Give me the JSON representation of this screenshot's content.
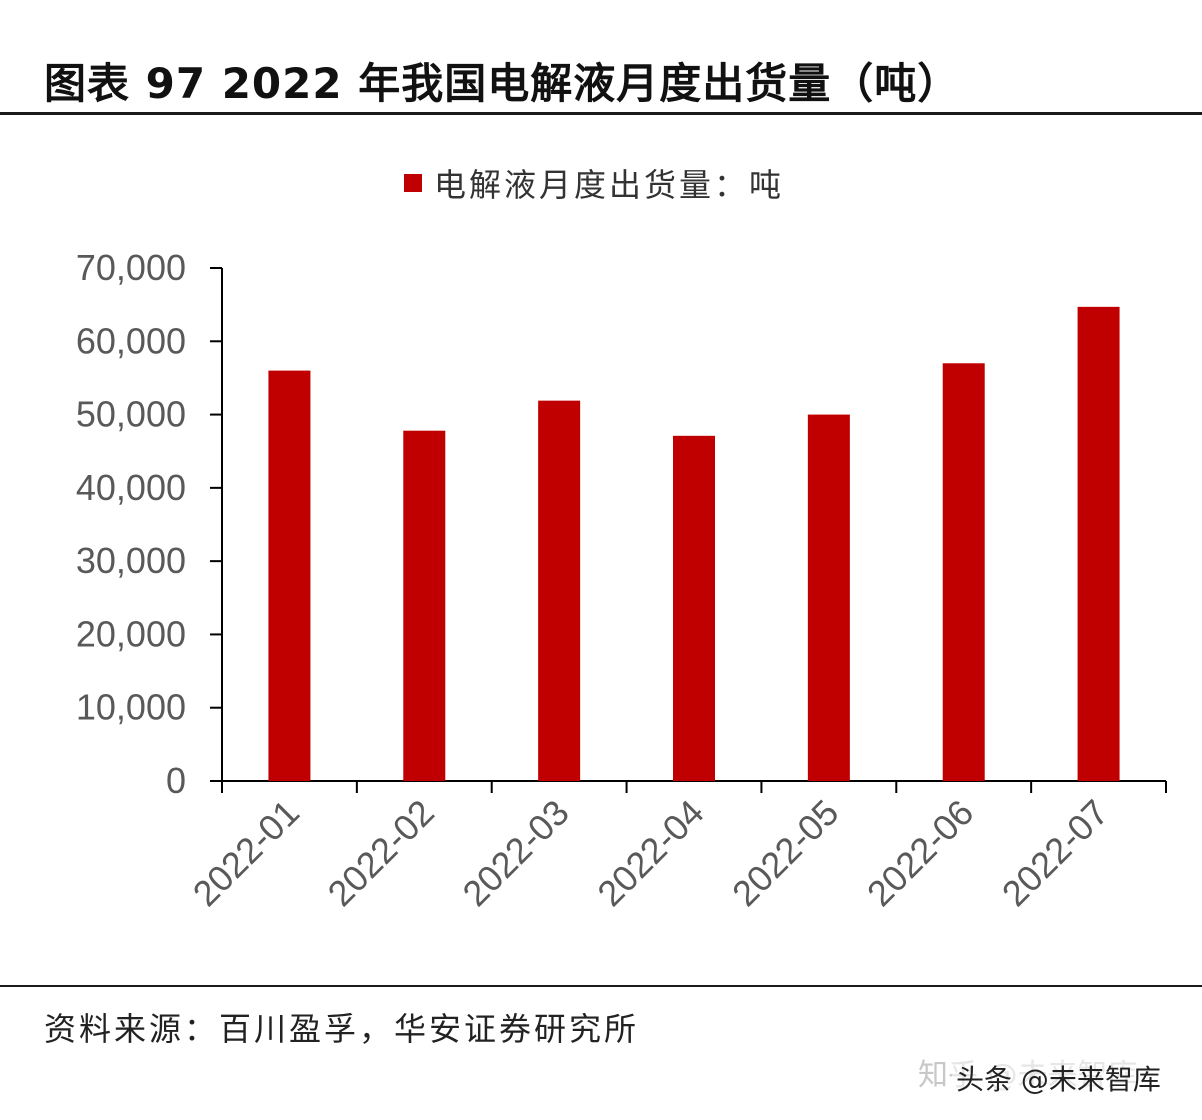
{
  "header": {
    "title": "图表 97 2022 年我国电解液月度出货量（吨）"
  },
  "footer": {
    "source": "资料来源：百川盈孚，华安证券研究所"
  },
  "watermarks": {
    "zhihu": "知乎 @未来智库",
    "toutiao": "头条 @未来智库"
  },
  "colors": {
    "bar": "#c00000",
    "axis": "#000000",
    "tick_text": "#595959"
  },
  "chart_data": {
    "type": "bar",
    "categories": [
      "2022-01",
      "2022-02",
      "2022-03",
      "2022-04",
      "2022-05",
      "2022-06",
      "2022-07"
    ],
    "series": [
      {
        "name": "电解液月度出货量：吨",
        "values": [
          56000,
          47800,
          51900,
          47100,
          50000,
          57000,
          64700
        ]
      }
    ],
    "ylim": [
      0,
      70000
    ],
    "yticks": [
      0,
      10000,
      20000,
      30000,
      40000,
      50000,
      60000,
      70000
    ],
    "ytick_labels": [
      "0",
      "10,000",
      "20,000",
      "30,000",
      "40,000",
      "50,000",
      "60,000",
      "70,000"
    ],
    "xtick_rotation_deg": -45,
    "grid": false,
    "legend": "top-center"
  }
}
